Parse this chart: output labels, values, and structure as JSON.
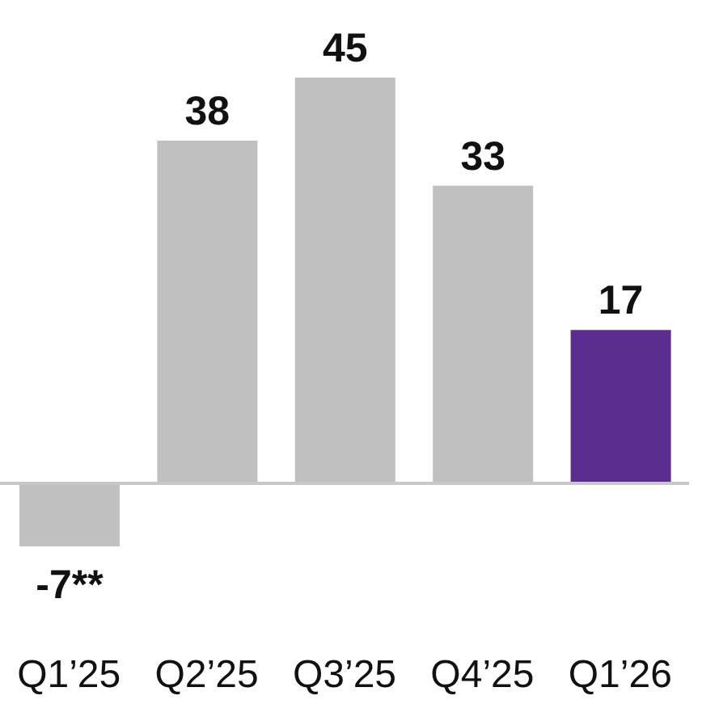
{
  "chart_data": {
    "type": "bar",
    "categories": [
      "Q1’25",
      "Q2’25",
      "Q3’25",
      "Q4’25",
      "Q1’26"
    ],
    "values": [
      -7,
      38,
      45,
      33,
      17
    ],
    "colors": [
      "#c0c0c0",
      "#c0c0c0",
      "#c0c0c0",
      "#c0c0c0",
      "#5b2d8e"
    ],
    "value_labels": [
      "-7**",
      "38",
      "45",
      "33",
      "17"
    ]
  }
}
